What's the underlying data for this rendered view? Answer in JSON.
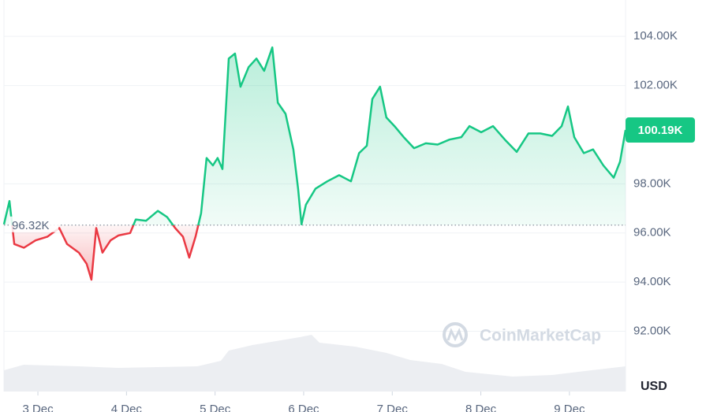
{
  "chart_data": {
    "type": "line",
    "ylabel": "USD",
    "watermark": "CoinMarketCap",
    "color_up": "#16c784",
    "color_down": "#ea3943",
    "grid": true,
    "x": [
      -9.2,
      -7.7,
      -6.4,
      -3.8,
      -0.6,
      2.6,
      5.8,
      7.9,
      11.1,
      13.2,
      14.5,
      15.8,
      17.5,
      19.7,
      21.8,
      25.0,
      26.5,
      29.3,
      32.5,
      35.0,
      37.2,
      39.3,
      41.0,
      42.7,
      44.2,
      45.7,
      47.4,
      48.7,
      50.0,
      51.7,
      53.4,
      54.9,
      57.1,
      59.2,
      61.3,
      63.5,
      65.0,
      67.1,
      69.2,
      70.5,
      71.4,
      72.6,
      75.2,
      78.4,
      81.6,
      84.8,
      87.0,
      89.1,
      90.6,
      92.7,
      94.4,
      96.6,
      99.1,
      101.9,
      105.1,
      108.3,
      111.5,
      114.7,
      116.9,
      120.1,
      123.3,
      126.5,
      129.7,
      132.9,
      136.1,
      139.3,
      141.9,
      143.6,
      145.3,
      147.9,
      150.4,
      153.2,
      156.0,
      157.7,
      159.2
    ],
    "values": [
      96350,
      97300,
      95550,
      95400,
      95700,
      95850,
      96200,
      95550,
      95200,
      94750,
      94100,
      96200,
      95200,
      95700,
      95900,
      96000,
      96550,
      96500,
      96900,
      96650,
      96200,
      95850,
      95000,
      95850,
      96800,
      99050,
      98750,
      99050,
      98600,
      103100,
      103300,
      101950,
      102750,
      103100,
      102600,
      103550,
      101300,
      100850,
      99400,
      97800,
      96350,
      97150,
      97800,
      98100,
      98350,
      98100,
      99250,
      99550,
      101450,
      101950,
      100700,
      100350,
      99900,
      99450,
      99650,
      99600,
      99800,
      99900,
      100350,
      100100,
      100350,
      99800,
      99300,
      100050,
      100050,
      99950,
      100350,
      101150,
      99900,
      99250,
      99400,
      98750,
      98250,
      98900,
      100190
    ],
    "xlim": [
      -9.2,
      159.2
    ],
    "xticks": [
      {
        "value": 0,
        "label": "3 Dec"
      },
      {
        "value": 24,
        "label": "4 Dec"
      },
      {
        "value": 48,
        "label": "5 Dec"
      },
      {
        "value": 72,
        "label": "6 Dec"
      },
      {
        "value": 96,
        "label": "7 Dec"
      },
      {
        "value": 120,
        "label": "8 Dec"
      },
      {
        "value": 144,
        "label": "9 Dec"
      }
    ],
    "ylim": [
      89550,
      105480
    ],
    "yticks": [
      {
        "value": 92000,
        "label": "92.00K"
      },
      {
        "value": 94000,
        "label": "94.00K"
      },
      {
        "value": 96000,
        "label": "96.00K"
      },
      {
        "value": 98000,
        "label": "98.00K"
      },
      {
        "value": 102000,
        "label": "102.00K"
      },
      {
        "value": 104000,
        "label": "104.00K"
      }
    ],
    "reference_line": {
      "value": 96320,
      "label": "96.32K"
    },
    "last_price": {
      "value": 100190,
      "label": "100.19K"
    }
  }
}
